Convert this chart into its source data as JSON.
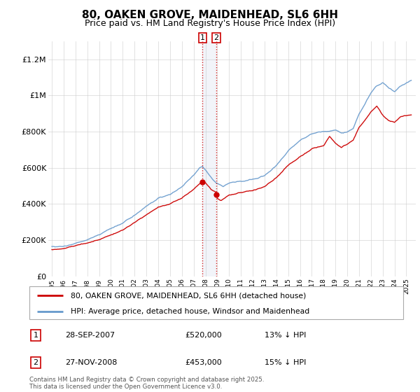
{
  "title": "80, OAKEN GROVE, MAIDENHEAD, SL6 6HH",
  "subtitle": "Price paid vs. HM Land Registry's House Price Index (HPI)",
  "legend_line1": "80, OAKEN GROVE, MAIDENHEAD, SL6 6HH (detached house)",
  "legend_line2": "HPI: Average price, detached house, Windsor and Maidenhead",
  "annotation1_label": "1",
  "annotation1_date": "28-SEP-2007",
  "annotation1_price": "£520,000",
  "annotation1_hpi": "13% ↓ HPI",
  "annotation2_label": "2",
  "annotation2_date": "27-NOV-2008",
  "annotation2_price": "£453,000",
  "annotation2_hpi": "15% ↓ HPI",
  "footer": "Contains HM Land Registry data © Crown copyright and database right 2025.\nThis data is licensed under the Open Government Licence v3.0.",
  "red_color": "#cc0000",
  "blue_color": "#6699cc",
  "vline_color": "#cc0000",
  "vspan_color": "#aabbdd",
  "bg_color": "#ffffff",
  "grid_color": "#cccccc",
  "ylim": [
    0,
    1300000
  ],
  "yticks": [
    0,
    200000,
    400000,
    600000,
    800000,
    1000000,
    1200000
  ],
  "ytick_labels": [
    "£0",
    "£200K",
    "£400K",
    "£600K",
    "£800K",
    "£1M",
    "£1.2M"
  ],
  "sale1_year": 2007.75,
  "sale2_year": 2008.92,
  "sale1_price": 520000,
  "sale2_price": 453000
}
